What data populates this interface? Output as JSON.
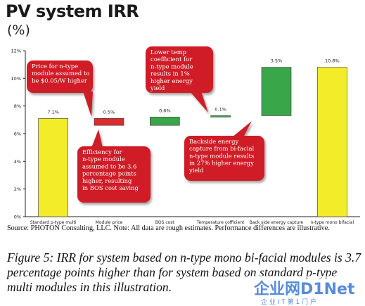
{
  "header": {
    "title": "PV system IRR",
    "unit": "(%)"
  },
  "chart_data": {
    "type": "bar",
    "subtype": "waterfall",
    "title": "PV system IRR",
    "ylabel": "(%)",
    "ylim": [
      0,
      12
    ],
    "yticks": [
      "0%",
      "2%",
      "4%",
      "6%",
      "8%",
      "10%",
      "12%"
    ],
    "grid": false,
    "categories": [
      "Standard p-type multi",
      "Module price",
      "BOS cost",
      "Temperature cofficient",
      "Back side energy capture",
      "n-type mono bifacial"
    ],
    "series": [
      {
        "values": [
          7.1,
          0.5,
          0.6,
          0.1,
          3.5,
          10.8
        ],
        "bases": [
          0,
          6.6,
          6.6,
          7.2,
          7.3,
          0
        ],
        "labels": [
          "7.1%",
          "0.5%",
          "0.6%",
          "0.1%",
          "3.5%",
          "10.8%"
        ],
        "colors": [
          "#f3ec28",
          "#dd2a2e",
          "#3aa64a",
          "#3aa64a",
          "#3aa64a",
          "#f3ec28"
        ]
      }
    ],
    "annotations": [
      "Price for n-type module assumed to be $0.05/W higher",
      "Efficiency for n-type module assumed to be 3.6 percentage points higher, resulting in BOS cost saving",
      "Lower temp coefficient for n-type module results in 1% higher energy yield",
      "Backside energy capture from bi-facial n-type module results in 27% higher energy yield"
    ]
  },
  "colors": {
    "callout": "#cf1f27",
    "yellow_bar": "#f3ec28",
    "red_bar": "#dd2a2e",
    "green_bar": "#3aa64a"
  },
  "footer": {
    "source": "Source: PHOTON Consulting, LLC. Note: All data are rough estimates.  Performance differences are illustrative.",
    "caption": "Figure 5: IRR for system based on n-type mono bi-facial modules is 3.7 percentage points higher than for system based on standard p-type multi modules in this illustration."
  },
  "watermark": {
    "logo": "企业网D1Net",
    "sub": "企 业 I T 第 1 门 户"
  }
}
